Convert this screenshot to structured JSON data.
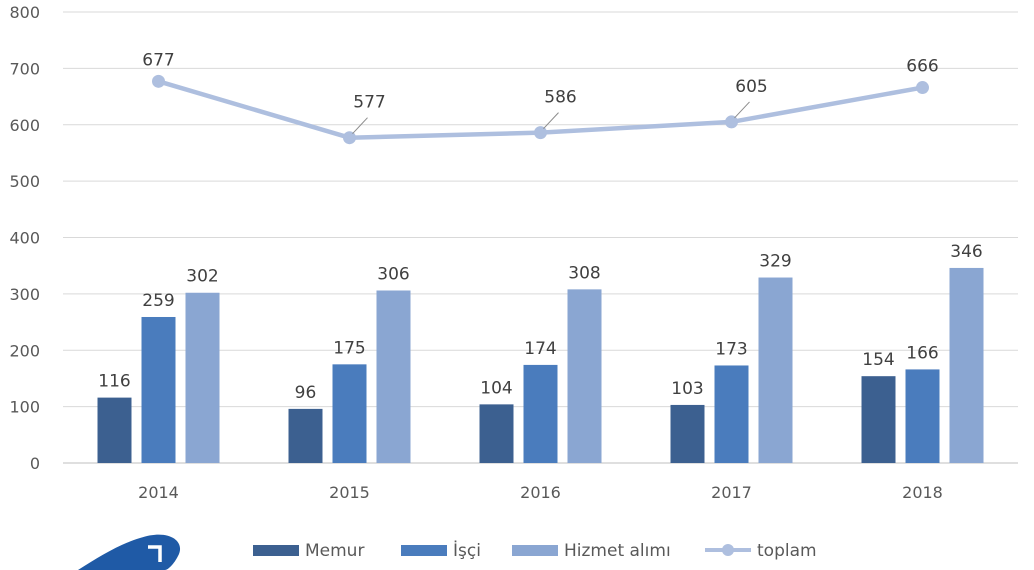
{
  "chart_data": {
    "type": "bar",
    "categories": [
      "2014",
      "2015",
      "2016",
      "2017",
      "2018"
    ],
    "series": [
      {
        "name": "Memur",
        "type": "bar",
        "color": "#3c6090",
        "values": [
          116,
          96,
          104,
          103,
          154
        ]
      },
      {
        "name": "İşçi",
        "type": "bar",
        "color": "#4a7cbd",
        "values": [
          259,
          175,
          174,
          173,
          166
        ]
      },
      {
        "name": "Hizmet alımı",
        "type": "bar",
        "color": "#8aa6d2",
        "values": [
          302,
          306,
          308,
          329,
          346
        ]
      },
      {
        "name": "toplam",
        "type": "line",
        "color": "#aebfdf",
        "values": [
          677,
          577,
          586,
          605,
          666
        ]
      }
    ],
    "y_ticks": [
      "0",
      "100",
      "200",
      "300",
      "400",
      "500",
      "600",
      "700",
      "800"
    ],
    "ylim": [
      0,
      800
    ],
    "grid": true,
    "legend_position": "bottom"
  },
  "logo_icon": "blue-swoosh-logo"
}
